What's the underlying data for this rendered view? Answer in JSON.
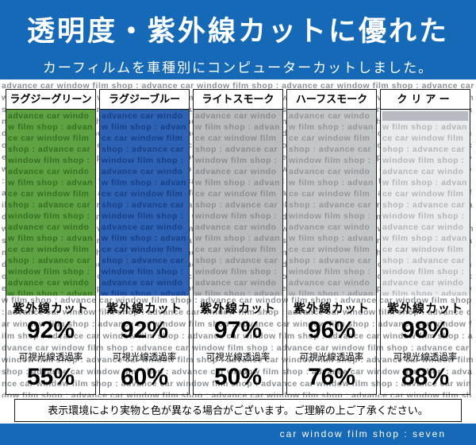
{
  "colors": {
    "band_blue": "#1569b7"
  },
  "header": {
    "title": "透明度・紫外線カットに優れた",
    "subtitle": "カーフィルムを車種別にコンピューターカットしました。"
  },
  "watermark": {
    "phrase": "advance car window film shop :"
  },
  "labels": {
    "uv_cut": "紫外線カット",
    "vlt": "可視光線透過率"
  },
  "columns": [
    {
      "label": "ラグジーグリーン",
      "uv_cut": "92%",
      "vlt": "55%",
      "swatch_color": "#5ea243",
      "swatch_text_color": "#36701f"
    },
    {
      "label": "ラグジーブルー",
      "uv_cut": "92%",
      "vlt": "60%",
      "swatch_color": "#2e62b4",
      "swatch_text_color": "#173f85"
    },
    {
      "label": "ライトスモーク",
      "uv_cut": "97%",
      "vlt": "50%",
      "swatch_color": "#babdbf",
      "swatch_text_color": "#8b8e91"
    },
    {
      "label": "ハーフスモーク",
      "uv_cut": "96%",
      "vlt": "76%",
      "swatch_color": "#c4c7c9",
      "swatch_text_color": "#94979a"
    },
    {
      "label": "クリアー",
      "uv_cut": "98%",
      "vlt": "88%",
      "swatch_color": "#e9eced",
      "swatch_text_color": "#b2b6b9"
    }
  ],
  "disclaimer": "表示環境により実物と色が異なる場合がございます。ご理解の上ご了承ください。",
  "footer": {
    "text": "car window film shop : seven"
  }
}
